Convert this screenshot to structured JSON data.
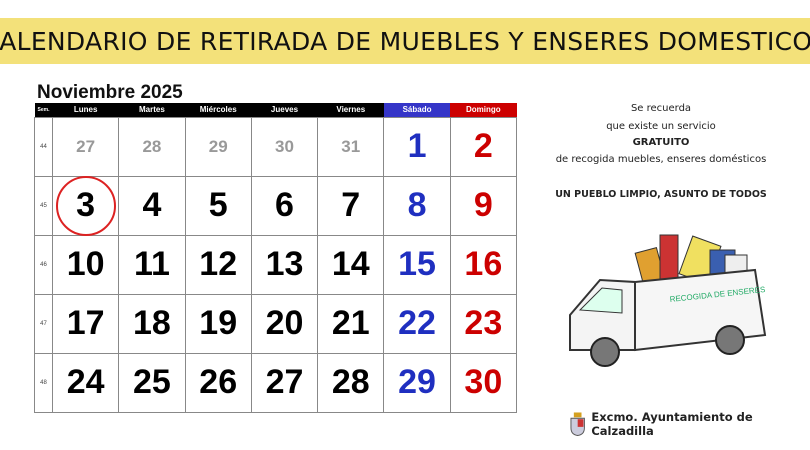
{
  "banner": "CALENDARIO DE RETIRADA DE MUEBLES Y ENSERES DOMESTICOS",
  "calendar": {
    "month": "Noviembre 2025",
    "sem_label": "Sem.",
    "days": [
      "Lunes",
      "Martes",
      "Miércoles",
      "Jueves",
      "Viernes",
      "Sábado",
      "Domingo"
    ],
    "weeks": [
      {
        "num": "44",
        "dates": [
          "27",
          "28",
          "29",
          "30",
          "31",
          "1",
          "2"
        ]
      },
      {
        "num": "45",
        "dates": [
          "3",
          "4",
          "5",
          "6",
          "7",
          "8",
          "9"
        ]
      },
      {
        "num": "46",
        "dates": [
          "10",
          "11",
          "12",
          "13",
          "14",
          "15",
          "16"
        ]
      },
      {
        "num": "47",
        "dates": [
          "17",
          "18",
          "19",
          "20",
          "21",
          "22",
          "23"
        ]
      },
      {
        "num": "48",
        "dates": [
          "24",
          "25",
          "26",
          "27",
          "28",
          "29",
          "30"
        ]
      }
    ],
    "highlighted_date": "3",
    "colors": {
      "saturday": "#1f2fc0",
      "sunday": "#cc0000",
      "circle": "#dd2222"
    }
  },
  "notice": {
    "line1": "Se recuerda",
    "line2": "que existe un servicio",
    "line3": "GRATUITO",
    "line4": "de recogida muebles,  enseres domésticos",
    "slogan": "UN PUEBLO LIMPIO, ASUNTO DE TODOS"
  },
  "truck_sign": "RECOGIDA DE ENSERES",
  "footer": "Excmo. Ayuntamiento de Calzadilla"
}
